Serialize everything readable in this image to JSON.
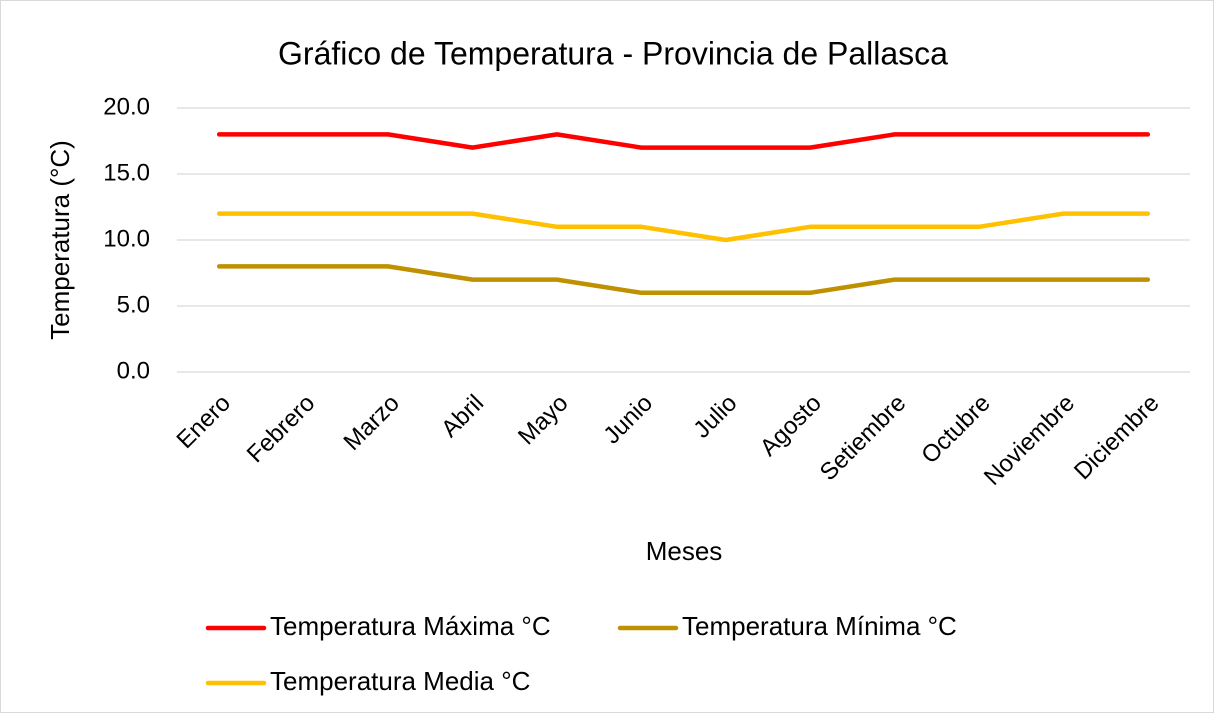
{
  "chart_data": {
    "type": "line",
    "title": "Gráfico de Temperatura - Provincia de Pallasca",
    "x_label": "Meses",
    "y_label": "Temperatura (°C)",
    "categories": [
      "Enero",
      "Febrero",
      "Marzo",
      "Abril",
      "Mayo",
      "Junio",
      "Julio",
      "Agosto",
      "Setiembre",
      "Octubre",
      "Noviembre",
      "Diciembre"
    ],
    "series": [
      {
        "name": "Temperatura Máxima °C",
        "color": "#ff0000",
        "values": [
          18,
          18,
          18,
          17,
          18,
          17,
          17,
          17,
          18,
          18,
          18,
          18
        ]
      },
      {
        "name": "Temperatura Mínima °C",
        "color": "#bf9000",
        "values": [
          8,
          8,
          8,
          7,
          7,
          6,
          6,
          6,
          7,
          7,
          7,
          7
        ]
      },
      {
        "name": "Temperatura Media °C",
        "color": "#ffc000",
        "values": [
          12,
          12,
          12,
          12,
          11,
          11,
          10,
          11,
          11,
          11,
          12,
          12
        ]
      }
    ],
    "ylim": [
      0,
      20
    ],
    "yticks": [
      {
        "value": 0,
        "label": "0.0"
      },
      {
        "value": 5,
        "label": "5.0"
      },
      {
        "value": 10,
        "label": "10.0"
      },
      {
        "value": 15,
        "label": "15.0"
      },
      {
        "value": 20,
        "label": "20.0"
      }
    ],
    "grid": true,
    "legend": "bottom"
  }
}
